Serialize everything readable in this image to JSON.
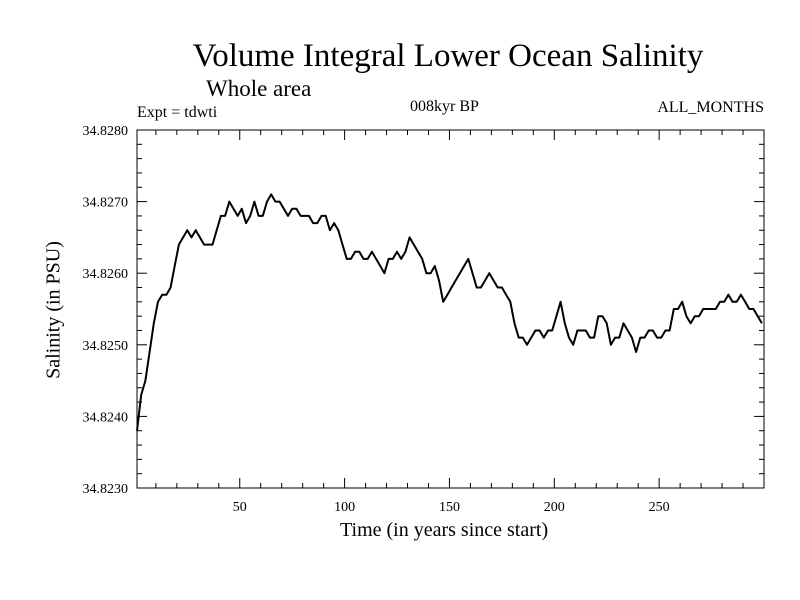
{
  "chart_data": {
    "type": "line",
    "title": "Volume Integral Lower Ocean Salinity",
    "subtitle": "Whole area",
    "experiment": "Expt = tdwti",
    "period": "008kyr BP",
    "months": "ALL_MONTHS",
    "xlabel": "Time (in years since start)",
    "ylabel": "Salinity (in PSU)",
    "xlim": [
      1,
      300
    ],
    "ylim": [
      34.823,
      34.828
    ],
    "xticks": [
      50,
      100,
      150,
      200,
      250
    ],
    "xtick_labels": [
      "50",
      "100",
      "150",
      "200",
      "250"
    ],
    "yticks": [
      34.823,
      34.824,
      34.825,
      34.826,
      34.827,
      34.828
    ],
    "ytick_labels": [
      "34.8230",
      "34.8240",
      "34.8250",
      "34.8260",
      "34.8270",
      "34.8280"
    ],
    "series": [
      {
        "name": "Salinity",
        "x": [
          1,
          3,
          5,
          7,
          9,
          11,
          13,
          15,
          17,
          19,
          21,
          23,
          25,
          27,
          29,
          31,
          33,
          35,
          37,
          39,
          41,
          43,
          45,
          47,
          49,
          51,
          53,
          55,
          57,
          59,
          61,
          63,
          65,
          67,
          69,
          71,
          73,
          75,
          77,
          79,
          81,
          83,
          85,
          87,
          89,
          91,
          93,
          95,
          97,
          99,
          101,
          103,
          105,
          107,
          109,
          111,
          113,
          115,
          117,
          119,
          121,
          123,
          125,
          127,
          129,
          131,
          133,
          135,
          137,
          139,
          141,
          143,
          145,
          147,
          149,
          151,
          153,
          155,
          157,
          159,
          161,
          163,
          165,
          167,
          169,
          171,
          173,
          175,
          177,
          179,
          181,
          183,
          185,
          187,
          189,
          191,
          193,
          195,
          197,
          199,
          201,
          203,
          205,
          207,
          209,
          211,
          213,
          215,
          217,
          219,
          221,
          223,
          225,
          227,
          229,
          231,
          233,
          235,
          237,
          239,
          241,
          243,
          245,
          247,
          249,
          251,
          253,
          255,
          257,
          259,
          261,
          263,
          265,
          267,
          269,
          271,
          273,
          275,
          277,
          279,
          281,
          283,
          285,
          287,
          289,
          291,
          293,
          295,
          297,
          299
        ],
        "values": [
          34.8238,
          34.8243,
          34.8245,
          34.8249,
          34.8253,
          34.8256,
          34.8257,
          34.8257,
          34.8258,
          34.8261,
          34.8264,
          34.8265,
          34.8266,
          34.8265,
          34.8266,
          34.8265,
          34.8264,
          34.8264,
          34.8264,
          34.8266,
          34.8268,
          34.8268,
          34.827,
          34.8269,
          34.8268,
          34.8269,
          34.8267,
          34.8268,
          34.827,
          34.8268,
          34.8268,
          34.827,
          34.8271,
          34.827,
          34.827,
          34.8269,
          34.8268,
          34.8269,
          34.8269,
          34.8268,
          34.8268,
          34.8268,
          34.8267,
          34.8267,
          34.8268,
          34.8268,
          34.8266,
          34.8267,
          34.8266,
          34.8264,
          34.8262,
          34.8262,
          34.8263,
          34.8263,
          34.8262,
          34.8262,
          34.8263,
          34.8262,
          34.8261,
          34.826,
          34.8262,
          34.8262,
          34.8263,
          34.8262,
          34.8263,
          34.8265,
          34.8264,
          34.8263,
          34.8262,
          34.826,
          34.826,
          34.8261,
          34.8259,
          34.8256,
          34.8257,
          34.8258,
          34.8259,
          34.826,
          34.8261,
          34.8262,
          34.826,
          34.8258,
          34.8258,
          34.8259,
          34.826,
          34.8259,
          34.8258,
          34.8258,
          34.8257,
          34.8256,
          34.8253,
          34.8251,
          34.8251,
          34.825,
          34.8251,
          34.8252,
          34.8252,
          34.8251,
          34.8252,
          34.8252,
          34.8254,
          34.8256,
          34.8253,
          34.8251,
          34.825,
          34.8252,
          34.8252,
          34.8252,
          34.8251,
          34.8251,
          34.8254,
          34.8254,
          34.8253,
          34.825,
          34.8251,
          34.8251,
          34.8253,
          34.8252,
          34.8251,
          34.8249,
          34.8251,
          34.8251,
          34.8252,
          34.8252,
          34.8251,
          34.8251,
          34.8252,
          34.8252,
          34.8255,
          34.8255,
          34.8256,
          34.8254,
          34.8253,
          34.8254,
          34.8254,
          34.8255,
          34.8255,
          34.8255,
          34.8255,
          34.8256,
          34.8256,
          34.8257,
          34.8256,
          34.8256,
          34.8257,
          34.8256,
          34.8255,
          34.8255,
          34.8254,
          34.8253
        ]
      }
    ],
    "colors": {
      "line": "#000000",
      "axis": "#000000",
      "background": "#ffffff"
    }
  }
}
